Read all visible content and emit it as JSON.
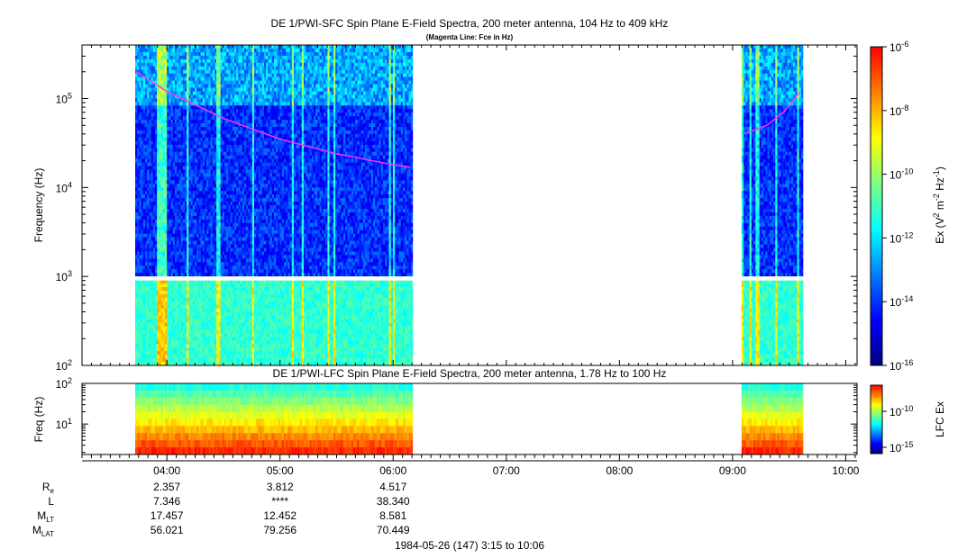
{
  "chart_data": [
    {
      "type": "heatmap",
      "title": "DE 1/PWI-SFC  Spin Plane E-Field Spectra, 200 meter antenna, 104 Hz to 409 kHz",
      "subtitle": "(Magenta Line: Fce in Hz)",
      "ylabel": "Frequency (Hz)",
      "yscale": "log",
      "ylim": [
        100,
        400000
      ],
      "yticks": [
        {
          "value": 100,
          "label": "10",
          "sup": "2"
        },
        {
          "value": 1000,
          "label": "10",
          "sup": "3"
        },
        {
          "value": 10000,
          "label": "10",
          "sup": "4"
        },
        {
          "value": 100000,
          "label": "10",
          "sup": "5"
        }
      ],
      "colorbar": {
        "label_parts": [
          "Ex (V",
          "2",
          " m",
          "-2",
          " Hz",
          "-1",
          ")"
        ],
        "scale": "log",
        "range": [
          1e-16,
          1e-06
        ],
        "ticks": [
          {
            "value": 1e-06,
            "label": "10",
            "sup": "-6"
          },
          {
            "value": 1e-08,
            "label": "10",
            "sup": "-8"
          },
          {
            "value": 1e-10,
            "label": "10",
            "sup": "-10"
          },
          {
            "value": 1e-12,
            "label": "10",
            "sup": "-12"
          },
          {
            "value": 1e-14,
            "label": "10",
            "sup": "-14"
          },
          {
            "value": 1e-16,
            "label": "10",
            "sup": "-16"
          }
        ]
      },
      "coverage_hours": [
        [
          3.72,
          6.18
        ],
        [
          9.08,
          9.62
        ]
      ],
      "fce_line": {
        "name": "Fce",
        "segments": [
          [
            [
              3.73,
              200000
            ],
            [
              4.0,
              120000
            ],
            [
              4.5,
              60000
            ],
            [
              5.0,
              35000
            ],
            [
              5.5,
              24000
            ],
            [
              6.0,
              18000
            ],
            [
              6.15,
              17000
            ]
          ],
          [
            [
              9.1,
              40000
            ],
            [
              9.3,
              50000
            ],
            [
              9.45,
              70000
            ],
            [
              9.6,
              120000
            ]
          ]
        ]
      }
    },
    {
      "type": "heatmap",
      "title": "DE 1/PWI-LFC  Spin Plane E-Field Spectra, 200 meter antenna, 1.78 Hz to 100 Hz",
      "ylabel": "Freq (Hz)",
      "yscale": "log",
      "ylim": [
        1.78,
        100
      ],
      "yticks": [
        {
          "value": 10,
          "label": "10",
          "sup": "1"
        },
        {
          "value": 100,
          "label": "10",
          "sup": "2"
        }
      ],
      "colorbar": {
        "label": "LFC Ex",
        "scale": "log",
        "ticks": [
          {
            "value": 1e-10,
            "label": "10",
            "sup": "-10"
          },
          {
            "value": 1e-15,
            "label": "10",
            "sup": "-15"
          }
        ]
      },
      "coverage_hours": [
        [
          3.72,
          6.18
        ],
        [
          9.08,
          9.62
        ]
      ]
    }
  ],
  "time_axis": {
    "range_hours": [
      3.25,
      10.1
    ],
    "ticks": [
      {
        "value": 4,
        "label": "04:00"
      },
      {
        "value": 5,
        "label": "05:00"
      },
      {
        "value": 6,
        "label": "06:00"
      },
      {
        "value": 7,
        "label": "07:00"
      },
      {
        "value": 8,
        "label": "08:00"
      },
      {
        "value": 9,
        "label": "09:00"
      },
      {
        "value": 10,
        "label": "10:00"
      }
    ]
  },
  "ephemeris": {
    "rows": [
      {
        "label": "R",
        "sub": "e",
        "values": [
          "2.357",
          "3.812",
          "4.517"
        ]
      },
      {
        "label": "L",
        "sub": "",
        "values": [
          "7.346",
          "****",
          "38.340"
        ]
      },
      {
        "label": "M",
        "sub": "LT",
        "values": [
          "17.457",
          "12.452",
          "8.581"
        ]
      },
      {
        "label": "M",
        "sub": "LAT",
        "values": [
          "56.021",
          "79.256",
          "70.449"
        ]
      }
    ],
    "at_hours": [
      4,
      5,
      6
    ]
  },
  "footer": "1984-05-26 (147) 3:15 to 10:06",
  "colors": {
    "fce_line": "#ff33ff",
    "colormap": [
      "#00007f",
      "#0000ff",
      "#0080ff",
      "#00ffff",
      "#80ff80",
      "#ffff00",
      "#ff8000",
      "#ff0000"
    ]
  }
}
